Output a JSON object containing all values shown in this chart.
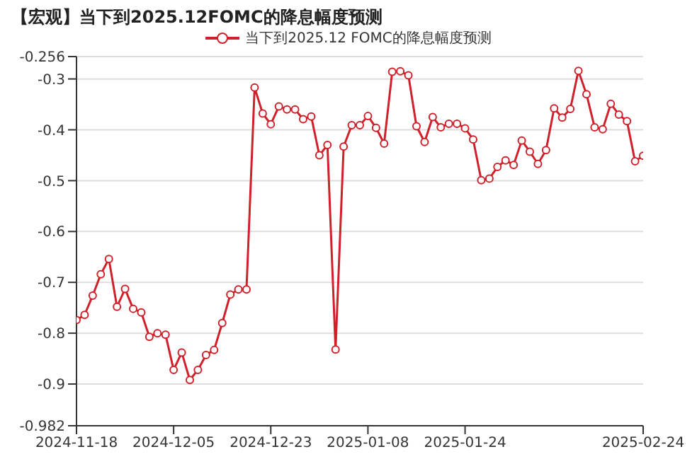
{
  "chart_data": {
    "type": "line",
    "title": "【宏观】当下到2025.12FOMC的降息幅度预测",
    "categories": [
      "2024-11-18",
      null,
      null,
      null,
      null,
      null,
      null,
      null,
      null,
      null,
      null,
      null,
      "2024-12-05",
      null,
      null,
      null,
      null,
      null,
      null,
      null,
      null,
      null,
      null,
      null,
      "2024-12-23",
      null,
      null,
      null,
      null,
      null,
      null,
      null,
      null,
      null,
      null,
      null,
      "2025-01-08",
      null,
      null,
      null,
      null,
      null,
      null,
      null,
      null,
      null,
      null,
      null,
      "2025-01-24",
      null,
      null,
      null,
      null,
      null,
      null,
      null,
      null,
      null,
      null,
      null,
      null,
      null,
      null,
      null,
      null,
      null,
      null,
      null,
      null,
      null,
      "2025-02-24"
    ],
    "series": [
      {
        "name": "当下到2025.12 FOMC的降息幅度预测",
        "color": "#d0202a",
        "values": [
          -0.774,
          -0.764,
          -0.726,
          -0.684,
          -0.654,
          -0.748,
          -0.713,
          -0.752,
          -0.759,
          -0.807,
          -0.8,
          -0.803,
          -0.872,
          -0.838,
          -0.892,
          -0.872,
          -0.843,
          -0.833,
          -0.78,
          -0.724,
          -0.714,
          -0.714,
          -0.317,
          -0.368,
          -0.389,
          -0.354,
          -0.36,
          -0.36,
          -0.379,
          -0.374,
          -0.45,
          -0.43,
          -0.832,
          -0.433,
          -0.391,
          -0.391,
          -0.373,
          -0.396,
          -0.427,
          -0.286,
          -0.285,
          -0.293,
          -0.393,
          -0.424,
          -0.375,
          -0.395,
          -0.388,
          -0.388,
          -0.397,
          -0.419,
          -0.499,
          -0.496,
          -0.473,
          -0.46,
          -0.469,
          -0.421,
          -0.443,
          -0.467,
          -0.44,
          -0.358,
          -0.376,
          -0.359,
          -0.284,
          -0.33,
          -0.395,
          -0.399,
          -0.349,
          -0.37,
          -0.383,
          -0.462,
          -0.451
        ]
      }
    ],
    "ylim": [
      -0.982,
      -0.256
    ],
    "yticks": [
      -0.982,
      -0.9,
      -0.8,
      -0.7,
      -0.6,
      -0.5,
      -0.4,
      -0.3,
      -0.256
    ],
    "grid": "y",
    "legend": "top",
    "marker": "circle",
    "line_style": "solid"
  }
}
